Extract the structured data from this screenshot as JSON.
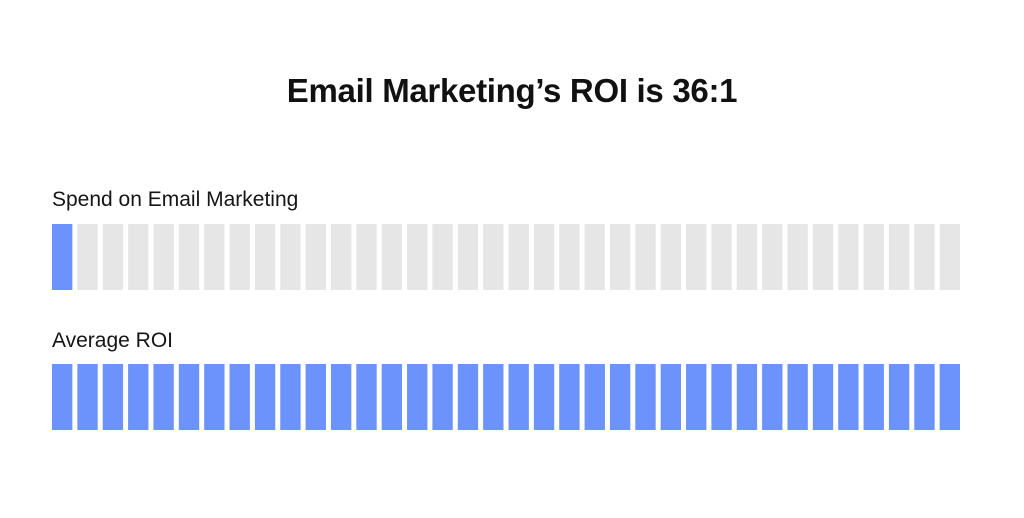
{
  "chart_data": {
    "type": "bar",
    "title": "Email Marketing’s ROI is  36:1",
    "rows": [
      {
        "id": "spend",
        "label": "Spend on Email Marketing",
        "filled": 1,
        "total": 36
      },
      {
        "id": "roi",
        "label": "Average ROI",
        "filled": 36,
        "total": 36
      }
    ],
    "colors": {
      "filled": "#6b93fb",
      "empty": "#e6e6e6"
    }
  }
}
